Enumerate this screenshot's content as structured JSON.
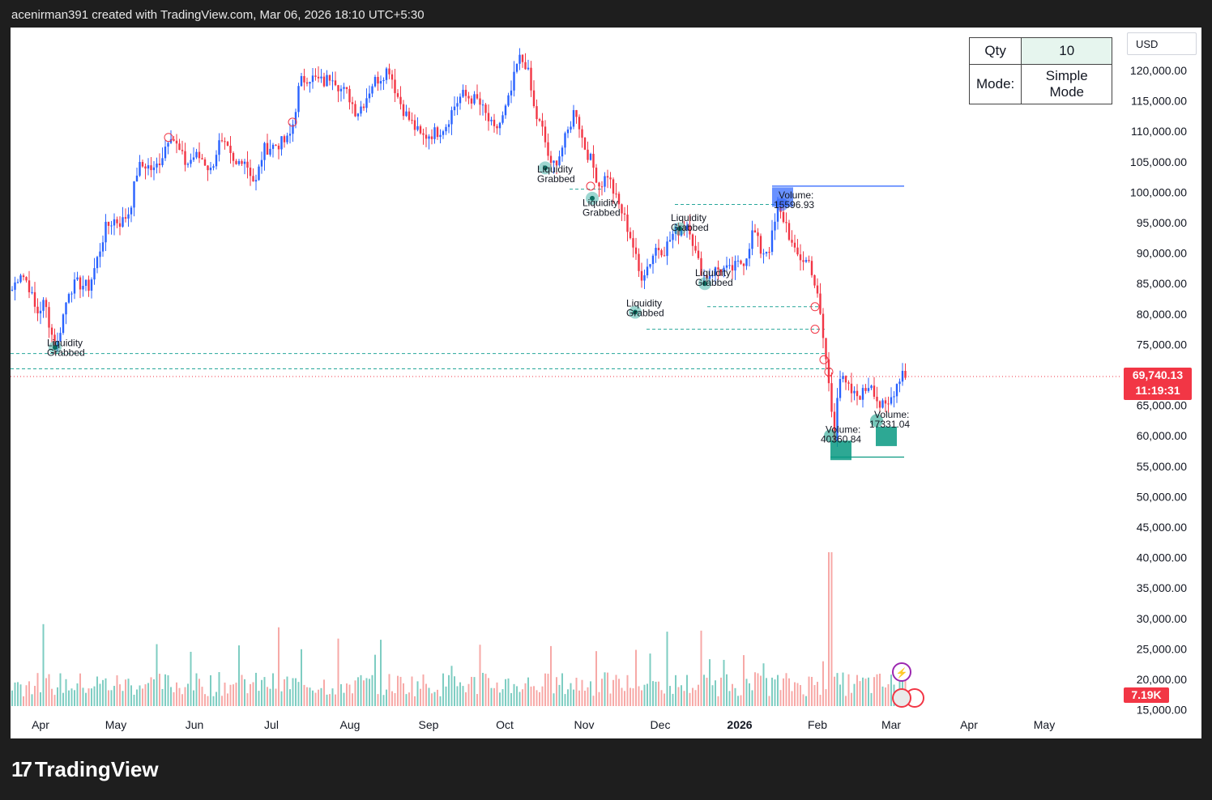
{
  "header": {
    "text": "acenirman391 created with TradingView.com, Mar 06, 2026 18:10 UTC+5:30"
  },
  "currency": "USD",
  "qty_table": {
    "qty_label": "Qty",
    "qty_value": "10",
    "mode_label": "Mode:",
    "mode_value": "Simple Mode"
  },
  "last_price": {
    "price": "69,740.13",
    "countdown": "11:19:31"
  },
  "volume_tag": "7.19K",
  "footer": {
    "brand": "TradingView"
  },
  "colors": {
    "up": "#2962ff",
    "down": "#f23645",
    "vol_up": "#7ecdc2",
    "vol_down": "#f7a9a7",
    "liq_marker": "#26a69a",
    "volume_box_blue": "#2962ff",
    "volume_box_green": "#089981"
  },
  "chart_data": {
    "type": "candlestick",
    "y_axis": {
      "min": 15000,
      "max": 122000,
      "ticks": [
        "120,000.00",
        "115,000.00",
        "110,000.00",
        "105,000.00",
        "100,000.00",
        "95,000.00",
        "90,000.00",
        "85,000.00",
        "80,000.00",
        "75,000.00",
        "65,000.00",
        "60,000.00",
        "55,000.00",
        "50,000.00",
        "45,000.00",
        "40,000.00",
        "35,000.00",
        "30,000.00",
        "25,000.00",
        "20,000.00",
        "15,000.00"
      ],
      "tick_values": [
        120000,
        115000,
        110000,
        105000,
        100000,
        95000,
        90000,
        85000,
        80000,
        75000,
        65000,
        60000,
        55000,
        50000,
        45000,
        40000,
        35000,
        30000,
        25000,
        20000,
        15000
      ]
    },
    "x_axis": {
      "labels": [
        "Apr",
        "May",
        "Jun",
        "Jul",
        "Aug",
        "Sep",
        "Oct",
        "Nov",
        "Dec",
        "2026",
        "Feb",
        "Mar",
        "Apr",
        "May"
      ],
      "bold_labels": [
        "2026"
      ]
    },
    "price_path": [
      [
        0,
        84000
      ],
      [
        10,
        87000
      ],
      [
        20,
        85000
      ],
      [
        30,
        80000
      ],
      [
        40,
        82000
      ],
      [
        50,
        76000
      ],
      [
        55,
        74500
      ],
      [
        60,
        78000
      ],
      [
        70,
        84000
      ],
      [
        80,
        85000
      ],
      [
        95,
        84500
      ],
      [
        105,
        89000
      ],
      [
        115,
        94000
      ],
      [
        125,
        95500
      ],
      [
        135,
        95000
      ],
      [
        145,
        97000
      ],
      [
        155,
        104000
      ],
      [
        165,
        104500
      ],
      [
        175,
        103500
      ],
      [
        185,
        106000
      ],
      [
        195,
        110000
      ],
      [
        205,
        107000
      ],
      [
        215,
        104500
      ],
      [
        225,
        106000
      ],
      [
        235,
        105500
      ],
      [
        245,
        103500
      ],
      [
        255,
        108000
      ],
      [
        265,
        107000
      ],
      [
        275,
        104000
      ],
      [
        285,
        106000
      ],
      [
        295,
        103000
      ],
      [
        300,
        101000
      ],
      [
        310,
        107000
      ],
      [
        320,
        107500
      ],
      [
        330,
        108000
      ],
      [
        340,
        108500
      ],
      [
        345,
        110000
      ],
      [
        355,
        118000
      ],
      [
        365,
        119000
      ],
      [
        375,
        118500
      ],
      [
        385,
        118000
      ],
      [
        395,
        119500
      ],
      [
        405,
        117000
      ],
      [
        415,
        116000
      ],
      [
        425,
        113000
      ],
      [
        435,
        115000
      ],
      [
        445,
        118000
      ],
      [
        455,
        119000
      ],
      [
        465,
        120500
      ],
      [
        475,
        116000
      ],
      [
        485,
        113000
      ],
      [
        495,
        111000
      ],
      [
        505,
        109000
      ],
      [
        515,
        109500
      ],
      [
        525,
        110000
      ],
      [
        535,
        111000
      ],
      [
        545,
        114000
      ],
      [
        555,
        116000
      ],
      [
        565,
        115500
      ],
      [
        575,
        115000
      ],
      [
        585,
        112500
      ],
      [
        595,
        110000
      ],
      [
        605,
        112000
      ],
      [
        615,
        116000
      ],
      [
        625,
        122000
      ],
      [
        635,
        121000
      ],
      [
        645,
        113000
      ],
      [
        655,
        110000
      ],
      [
        665,
        104000
      ],
      [
        675,
        106000
      ],
      [
        685,
        109500
      ],
      [
        695,
        114000
      ],
      [
        705,
        108000
      ],
      [
        715,
        105000
      ],
      [
        725,
        101000
      ],
      [
        735,
        103000
      ],
      [
        745,
        99000
      ],
      [
        755,
        96000
      ],
      [
        765,
        92000
      ],
      [
        775,
        86000
      ],
      [
        785,
        88000
      ],
      [
        795,
        91000
      ],
      [
        805,
        90500
      ],
      [
        815,
        93000
      ],
      [
        825,
        94000
      ],
      [
        835,
        95000
      ],
      [
        845,
        89000
      ],
      [
        855,
        86000
      ],
      [
        865,
        87000
      ],
      [
        875,
        87500
      ],
      [
        885,
        87000
      ],
      [
        895,
        88000
      ],
      [
        905,
        89000
      ],
      [
        915,
        94000
      ],
      [
        925,
        90000
      ],
      [
        935,
        91000
      ],
      [
        945,
        97000
      ],
      [
        955,
        95000
      ],
      [
        965,
        90000
      ],
      [
        975,
        89000
      ],
      [
        985,
        88500
      ],
      [
        995,
        82000
      ],
      [
        1005,
        72000
      ],
      [
        1010,
        66000
      ],
      [
        1015,
        60000
      ],
      [
        1020,
        70000
      ],
      [
        1030,
        68000
      ],
      [
        1040,
        66500
      ],
      [
        1050,
        67000
      ],
      [
        1060,
        69000
      ],
      [
        1070,
        65000
      ],
      [
        1080,
        64500
      ],
      [
        1090,
        68000
      ],
      [
        1100,
        71000
      ],
      [
        1103,
        69740
      ]
    ],
    "liquidity_labels": [
      {
        "text1": "Liquidity",
        "text2": "Grabbed"
      },
      {
        "text1": "Liquidity",
        "text2": "Grabbed"
      },
      {
        "text1": "Liquidity",
        "text2": "Grabbed"
      },
      {
        "text1": "Liquidity",
        "text2": "Grabbed"
      },
      {
        "text1": "Liquidity",
        "text2": "Grabbed"
      },
      {
        "text1": "Liquidity",
        "text2": "Grabbed"
      }
    ],
    "volume_labels": [
      {
        "title": "Volume:",
        "value": "15596.93"
      },
      {
        "title": "Volume:",
        "value": "40360.84"
      },
      {
        "title": "Volume:",
        "value": "17331.04"
      }
    ],
    "last_price_value": 69740.13
  }
}
